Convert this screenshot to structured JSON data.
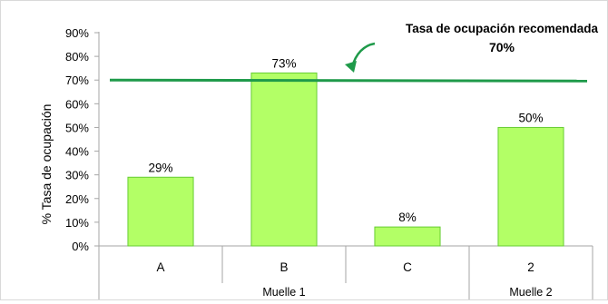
{
  "chart_data": {
    "type": "bar",
    "ylabel": "% Tasa de ocupación",
    "ylim": [
      0,
      90
    ],
    "yticks": [
      "0%",
      "10%",
      "20%",
      "30%",
      "40%",
      "50%",
      "60%",
      "70%",
      "80%",
      "90%"
    ],
    "categories": [
      "A",
      "B",
      "C",
      "2"
    ],
    "groups": [
      {
        "label": "Muelle 1",
        "categories": [
          "A",
          "B",
          "C"
        ]
      },
      {
        "label": "Muelle 2",
        "categories": [
          "2"
        ]
      }
    ],
    "values": [
      29,
      73,
      8,
      50
    ],
    "data_labels": [
      "29%",
      "73%",
      "8%",
      "50%"
    ],
    "grid": false,
    "reference_line": {
      "value": 70,
      "label": "Tasa de ocupación recomendada",
      "value_label": "70%"
    },
    "colors": {
      "bar_fill": "#b3ff66",
      "bar_stroke": "#66cc33",
      "reference_line": "#1f9a4a",
      "annotation_text": "#1f9a4a",
      "arrow": "#1f9a4a",
      "axis": "#a6a6a6"
    }
  }
}
